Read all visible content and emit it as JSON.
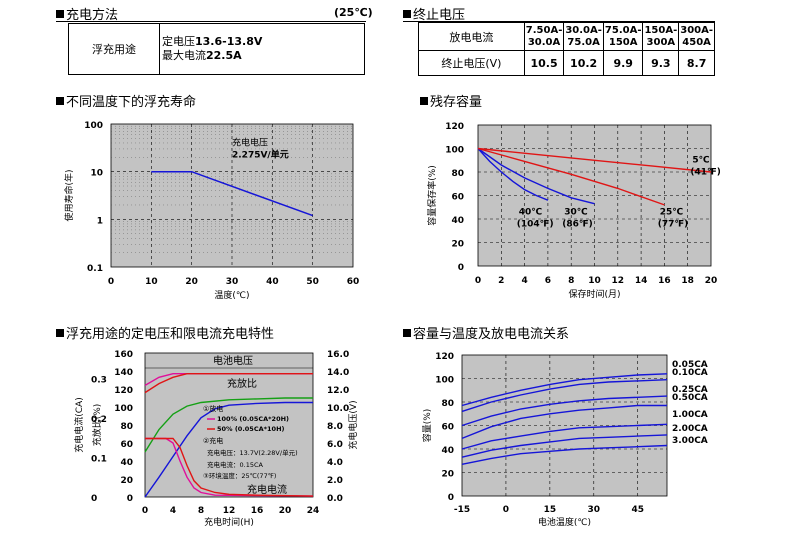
{
  "charge_method": {
    "title": "充电方法",
    "temp_note": "(25℃)",
    "row_label": "浮充用途",
    "line1_prefix": "定电压",
    "line1_value": "13.6-13.8V",
    "line2_prefix": "最大电流",
    "line2_value": "22.5A"
  },
  "cutoff_voltage": {
    "title": "终止电压",
    "row1_label": "放电电流",
    "row2_label": "终止电压(V)",
    "columns": [
      {
        "line1": "7.50A-",
        "line2": "30.0A",
        "value": "10.5"
      },
      {
        "line1": "30.0A-",
        "line2": "75.0A",
        "value": "10.2"
      },
      {
        "line1": "75.0A-",
        "line2": "150A",
        "value": "9.9"
      },
      {
        "line1": "150A-",
        "line2": "300A",
        "value": "9.3"
      },
      {
        "line1": "300A-",
        "line2": "450A",
        "value": "8.7"
      }
    ]
  },
  "chart_data": [
    {
      "id": "float-life",
      "type": "line",
      "title": "不同温度下的浮充寿命",
      "xlabel": "温度(℃)",
      "ylabel": "使用寿命(年)",
      "xlim": [
        0,
        60
      ],
      "ylim": [
        0.1,
        100
      ],
      "yscale": "log",
      "x_ticks": [
        "0",
        "10",
        "20",
        "30",
        "40",
        "50",
        "60"
      ],
      "y_ticks": [
        "0.1",
        "1",
        "10",
        "100"
      ],
      "grid": true,
      "series": [
        {
          "x": [
            10,
            20,
            50
          ],
          "y": [
            10,
            10,
            1.2
          ],
          "color": "#1515d8"
        }
      ],
      "annotation_line1": "充电电压",
      "annotation_line2": "2.275V/单元"
    },
    {
      "id": "residual-capacity",
      "type": "line",
      "title": "残存容量",
      "xlabel": "保存时间(月)",
      "ylabel": "容量保存率(%)",
      "xlim": [
        0,
        20
      ],
      "ylim": [
        0,
        120
      ],
      "x_ticks": [
        "0",
        "2",
        "4",
        "6",
        "8",
        "10",
        "12",
        "14",
        "16",
        "18",
        "20"
      ],
      "y_ticks": [
        "0",
        "20",
        "40",
        "60",
        "80",
        "100",
        "120"
      ],
      "grid": true,
      "series": [
        {
          "name_c": "40℃",
          "name_f": "(104℉)",
          "color": "#1515d8",
          "x": [
            0,
            1,
            2,
            3,
            4,
            5,
            6
          ],
          "y": [
            100,
            89,
            80,
            72,
            65,
            60,
            56
          ]
        },
        {
          "name_c": "30℃",
          "name_f": "(86℉)",
          "color": "#1515d8",
          "x": [
            0,
            2,
            4,
            6,
            8,
            10
          ],
          "y": [
            100,
            86,
            75,
            66,
            58,
            53
          ]
        },
        {
          "name_c": "25℃",
          "name_f": "(77℉)",
          "color": "#e01515",
          "x": [
            0,
            4,
            8,
            12,
            16
          ],
          "y": [
            100,
            89,
            78,
            66,
            52
          ]
        },
        {
          "name_c": "5℃",
          "name_f": "(41℉)",
          "color": "#e01515",
          "x": [
            0,
            5,
            10,
            15,
            20
          ],
          "y": [
            100,
            95,
            90,
            85,
            80
          ]
        }
      ]
    },
    {
      "id": "charge-characteristics",
      "type": "line",
      "title": "浮充用途的定电压和限电流充电特性",
      "xlabel": "充电时间(H)",
      "ylabel_current": "充电电流(CA)",
      "ylabel_ratio": "充放比(%)",
      "ylabel_voltage": "充电电压(V)",
      "xlim": [
        0,
        24
      ],
      "x_ticks": [
        "0",
        "4",
        "8",
        "12",
        "16",
        "20",
        "24"
      ],
      "current_ticks": [
        "0",
        "0.1",
        "0.2",
        "0.3"
      ],
      "ratio_ticks": [
        "0",
        "20",
        "40",
        "60",
        "80",
        "100",
        "120",
        "140",
        "160"
      ],
      "voltage_ticks": [
        "0.0",
        "2.0",
        "4.0",
        "6.0",
        "8.0",
        "10.0",
        "12.0",
        "14.0",
        "16.0"
      ],
      "label_voltage": "电池电压",
      "label_ratio": "充放比",
      "label_current": "充电电流",
      "legend": {
        "item1": "①放电",
        "item1a": "100% (0.05CA*20H)",
        "item1b": "50% (0.05CA*10H)",
        "item2": "②充电",
        "item2a": "充电电压：13.7V(2.28V/单元)",
        "item2b": "充电电流：0.15CA",
        "item3": "③环境温度：25℃(77℉)"
      },
      "series": [
        {
          "role": "voltage-100",
          "color": "#e0109a",
          "axis": "voltage",
          "x": [
            0,
            2,
            4,
            5,
            24
          ],
          "y": [
            12.4,
            13.3,
            13.7,
            13.7,
            13.7
          ]
        },
        {
          "role": "voltage-50",
          "color": "#e01515",
          "axis": "voltage",
          "x": [
            0,
            2,
            4,
            6,
            24
          ],
          "y": [
            11.6,
            12.6,
            13.3,
            13.7,
            13.7
          ]
        },
        {
          "role": "ratio-100",
          "color": "#1515d8",
          "axis": "ratio",
          "x": [
            0,
            2,
            4,
            6,
            8,
            10,
            12,
            16,
            20,
            24
          ],
          "y": [
            0,
            22,
            45,
            68,
            88,
            98,
            102,
            104,
            105,
            105
          ]
        },
        {
          "role": "ratio-50",
          "color": "#15a015",
          "axis": "ratio",
          "x": [
            0,
            2,
            4,
            6,
            8,
            12,
            16,
            20,
            24
          ],
          "y": [
            50,
            75,
            92,
            101,
            105,
            108,
            109,
            110,
            110
          ]
        },
        {
          "role": "current-100",
          "color": "#e0109a",
          "axis": "ratio",
          "x": [
            0,
            3,
            4,
            5,
            6,
            7,
            8,
            10,
            24
          ],
          "y": [
            65,
            65,
            60,
            40,
            22,
            10,
            5,
            2,
            1
          ]
        },
        {
          "role": "current-50",
          "color": "#e01515",
          "axis": "ratio",
          "x": [
            0,
            4,
            5,
            6,
            7,
            8,
            10,
            12,
            16,
            24
          ],
          "y": [
            65,
            65,
            55,
            35,
            18,
            10,
            5,
            3,
            2,
            1
          ]
        }
      ]
    },
    {
      "id": "capacity-temperature",
      "type": "line",
      "title": "容量与温度及放电电流关系",
      "xlabel": "电池温度(℃)",
      "ylabel": "容量(%)",
      "xlim": [
        -15,
        55
      ],
      "ylim": [
        0,
        120
      ],
      "x_ticks": [
        "-15",
        "0",
        "15",
        "30",
        "45"
      ],
      "y_ticks": [
        "0",
        "20",
        "40",
        "60",
        "80",
        "100",
        "120"
      ],
      "grid": true,
      "series": [
        {
          "name": "0.05CA",
          "color": "#1515d8",
          "x": [
            -15,
            -5,
            5,
            15,
            25,
            35,
            45,
            55
          ],
          "y": [
            77,
            84,
            90,
            95,
            99,
            101,
            103,
            104
          ]
        },
        {
          "name": "0.10CA",
          "color": "#1515d8",
          "x": [
            -15,
            -5,
            5,
            15,
            25,
            35,
            45,
            55
          ],
          "y": [
            72,
            80,
            86,
            91,
            95,
            97,
            98,
            99
          ]
        },
        {
          "name": "0.25CA",
          "color": "#1515d8",
          "x": [
            -15,
            -5,
            5,
            15,
            25,
            35,
            45,
            55
          ],
          "y": [
            60,
            68,
            74,
            78,
            81,
            83,
            84,
            85
          ]
        },
        {
          "name": "0.50CA",
          "color": "#1515d8",
          "x": [
            -15,
            -5,
            5,
            15,
            25,
            35,
            45,
            55
          ],
          "y": [
            49,
            59,
            66,
            70,
            73,
            75,
            77,
            77
          ]
        },
        {
          "name": "1.00CA",
          "color": "#1515d8",
          "x": [
            -15,
            -5,
            5,
            15,
            25,
            35,
            45,
            55
          ],
          "y": [
            40,
            47,
            51,
            55,
            58,
            59,
            60,
            61
          ]
        },
        {
          "name": "2.00CA",
          "color": "#1515d8",
          "x": [
            -15,
            -5,
            5,
            15,
            25,
            35,
            45,
            55
          ],
          "y": [
            33,
            39,
            43,
            46,
            49,
            50,
            51,
            52
          ]
        },
        {
          "name": "3.00CA",
          "color": "#1515d8",
          "x": [
            -15,
            -5,
            5,
            15,
            25,
            35,
            45,
            55
          ],
          "y": [
            27,
            32,
            36,
            38,
            40,
            41,
            42,
            43
          ]
        }
      ]
    }
  ]
}
